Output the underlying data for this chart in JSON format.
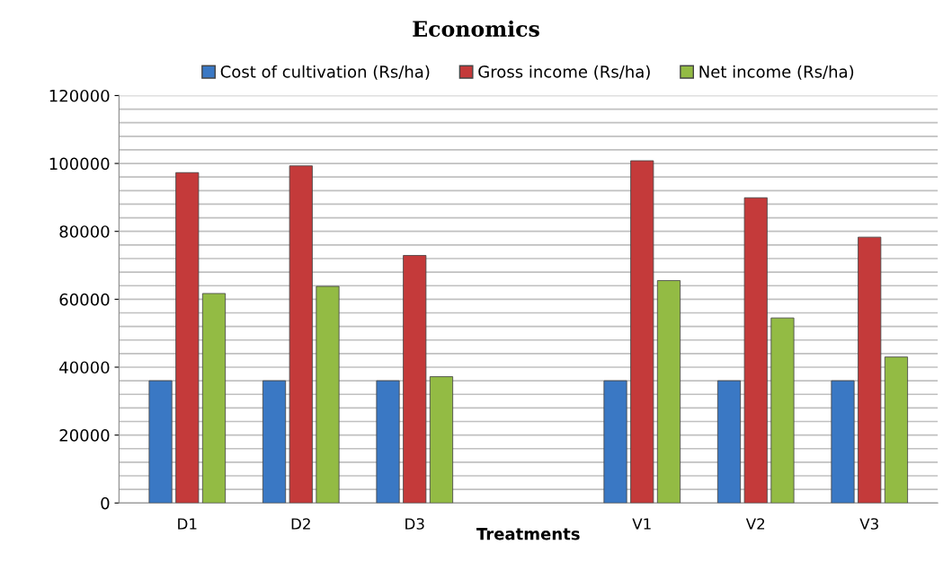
{
  "chart_data": {
    "type": "bar",
    "title": "Economics",
    "xlabel": "Treatments",
    "categories": [
      "D1",
      "D2",
      "D3",
      null,
      "V1",
      "V2",
      "V3"
    ],
    "series": [
      {
        "name": "Cost of cultivation (Rs/ha)",
        "color": "#3a78c4",
        "values": [
          36000,
          36000,
          36000,
          null,
          36000,
          36000,
          36000
        ]
      },
      {
        "name": "Gross income (Rs/ha)",
        "color": "#c43a3a",
        "values": [
          97300,
          99300,
          72900,
          null,
          100800,
          89900,
          78300
        ]
      },
      {
        "name": "Net income (Rs/ha)",
        "color": "#93bb44",
        "values": [
          61700,
          63800,
          37200,
          null,
          65500,
          54500,
          43000
        ]
      }
    ],
    "ylim": [
      0,
      120000
    ],
    "yticks": [
      0,
      {
        "value": 4000,
        "label": null
      },
      {
        "value": 8000,
        "label": null
      },
      {
        "value": 12000,
        "label": null
      },
      {
        "value": 16000,
        "label": null
      },
      20000,
      {
        "value": 24000,
        "label": null
      },
      {
        "value": 28000,
        "label": null
      },
      {
        "value": 32000,
        "label": null
      },
      {
        "value": 36000,
        "label": null
      },
      40000,
      {
        "value": 44000,
        "label": null
      },
      {
        "value": 48000,
        "label": null
      },
      {
        "value": 52000,
        "label": null
      },
      {
        "value": 56000,
        "label": null
      },
      60000,
      {
        "value": 64000,
        "label": null
      },
      {
        "value": 68000,
        "label": null
      },
      {
        "value": 72000,
        "label": null
      },
      {
        "value": 76000,
        "label": null
      },
      80000,
      {
        "value": 84000,
        "label": null
      },
      {
        "value": 88000,
        "label": null
      },
      {
        "value": 92000,
        "label": null
      },
      {
        "value": 96000,
        "label": null
      },
      100000,
      {
        "value": 104000,
        "label": null
      },
      {
        "value": 108000,
        "label": null
      },
      {
        "value": 112000,
        "label": null
      },
      {
        "value": 116000,
        "label": null
      },
      120000
    ],
    "grid": "y",
    "legend": "top"
  }
}
